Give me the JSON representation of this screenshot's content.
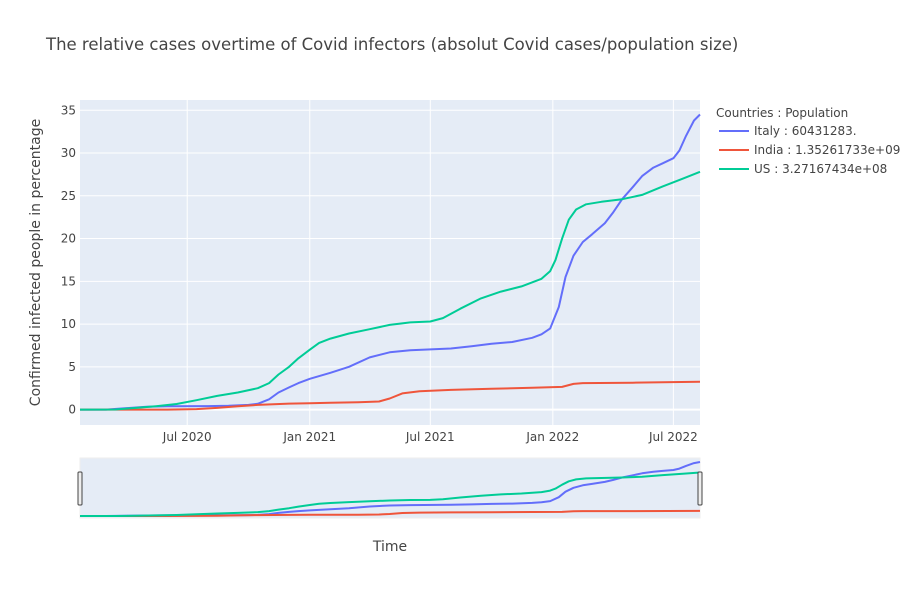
{
  "chart_data": {
    "type": "line",
    "title": "The relative cases overtime of Covid infectors (absolut Covid cases/population size)",
    "xlabel": "Time",
    "ylabel": "Confirmed infected people in percentage",
    "x_range": [
      "2020-01-22",
      "2022-08-10"
    ],
    "ylim": [
      -1.8,
      36.2
    ],
    "y_ticks": [
      0,
      5,
      10,
      15,
      20,
      25,
      30,
      35
    ],
    "x_ticks": [
      {
        "date": "2020-07-01",
        "label": "Jul 2020"
      },
      {
        "date": "2021-01-01",
        "label": "Jan 2021"
      },
      {
        "date": "2021-07-01",
        "label": "Jul 2021"
      },
      {
        "date": "2022-01-01",
        "label": "Jan 2022"
      },
      {
        "date": "2022-07-01",
        "label": "Jul 2022"
      }
    ],
    "grid": true,
    "legend": {
      "title": "Countries : Population",
      "placement": "right"
    },
    "rangeslider": true,
    "colors": {
      "plot_bg": "#E5ECF6",
      "grid": "#ffffff",
      "text": "#444444"
    },
    "series": [
      {
        "name": "Italy : 60431283.",
        "color": "#636EFA",
        "points": [
          [
            "2020-01-22",
            0.0
          ],
          [
            "2020-03-01",
            0.0
          ],
          [
            "2020-04-01",
            0.18
          ],
          [
            "2020-05-01",
            0.34
          ],
          [
            "2020-06-01",
            0.39
          ],
          [
            "2020-08-01",
            0.41
          ],
          [
            "2020-09-01",
            0.45
          ],
          [
            "2020-10-01",
            0.55
          ],
          [
            "2020-10-15",
            0.68
          ],
          [
            "2020-11-01",
            1.2
          ],
          [
            "2020-11-15",
            2.0
          ],
          [
            "2020-12-01",
            2.6
          ],
          [
            "2020-12-15",
            3.1
          ],
          [
            "2021-01-01",
            3.6
          ],
          [
            "2021-02-01",
            4.3
          ],
          [
            "2021-03-01",
            5.0
          ],
          [
            "2021-04-01",
            6.1
          ],
          [
            "2021-05-01",
            6.7
          ],
          [
            "2021-06-01",
            6.95
          ],
          [
            "2021-08-01",
            7.15
          ],
          [
            "2021-09-01",
            7.4
          ],
          [
            "2021-10-01",
            7.7
          ],
          [
            "2021-11-01",
            7.9
          ],
          [
            "2021-12-01",
            8.4
          ],
          [
            "2021-12-15",
            8.8
          ],
          [
            "2021-12-28",
            9.5
          ],
          [
            "2022-01-10",
            12.0
          ],
          [
            "2022-01-20",
            15.5
          ],
          [
            "2022-02-01",
            18.0
          ],
          [
            "2022-02-15",
            19.6
          ],
          [
            "2022-03-01",
            20.5
          ],
          [
            "2022-03-20",
            21.8
          ],
          [
            "2022-04-01",
            23.0
          ],
          [
            "2022-04-15",
            24.6
          ],
          [
            "2022-05-01",
            26.0
          ],
          [
            "2022-05-15",
            27.3
          ],
          [
            "2022-06-01",
            28.3
          ],
          [
            "2022-06-15",
            28.8
          ],
          [
            "2022-07-01",
            29.4
          ],
          [
            "2022-07-10",
            30.3
          ],
          [
            "2022-07-20",
            32.0
          ],
          [
            "2022-08-01",
            33.8
          ],
          [
            "2022-08-10",
            34.5
          ]
        ]
      },
      {
        "name": "India : 1.35261733e+09",
        "color": "#EF553B",
        "points": [
          [
            "2020-01-22",
            0.0
          ],
          [
            "2020-06-01",
            0.0
          ],
          [
            "2020-07-15",
            0.06
          ],
          [
            "2020-08-15",
            0.2
          ],
          [
            "2020-09-15",
            0.4
          ],
          [
            "2020-10-15",
            0.55
          ],
          [
            "2020-12-01",
            0.7
          ],
          [
            "2021-01-01",
            0.75
          ],
          [
            "2021-02-01",
            0.8
          ],
          [
            "2021-03-15",
            0.85
          ],
          [
            "2021-04-15",
            0.95
          ],
          [
            "2021-05-01",
            1.3
          ],
          [
            "2021-05-20",
            1.9
          ],
          [
            "2021-06-15",
            2.15
          ],
          [
            "2021-08-01",
            2.3
          ],
          [
            "2021-10-01",
            2.45
          ],
          [
            "2021-12-01",
            2.55
          ],
          [
            "2022-01-15",
            2.65
          ],
          [
            "2022-02-01",
            3.0
          ],
          [
            "2022-02-15",
            3.1
          ],
          [
            "2022-05-01",
            3.15
          ],
          [
            "2022-08-10",
            3.25
          ]
        ]
      },
      {
        "name": "US : 3.27167434e+08",
        "color": "#00CC96",
        "points": [
          [
            "2020-01-22",
            0.0
          ],
          [
            "2020-03-15",
            0.01
          ],
          [
            "2020-04-15",
            0.2
          ],
          [
            "2020-05-15",
            0.4
          ],
          [
            "2020-06-15",
            0.65
          ],
          [
            "2020-07-15",
            1.1
          ],
          [
            "2020-08-15",
            1.6
          ],
          [
            "2020-09-15",
            2.0
          ],
          [
            "2020-10-15",
            2.5
          ],
          [
            "2020-11-01",
            3.1
          ],
          [
            "2020-11-15",
            4.1
          ],
          [
            "2020-12-01",
            5.0
          ],
          [
            "2020-12-15",
            6.0
          ],
          [
            "2021-01-01",
            7.0
          ],
          [
            "2021-01-15",
            7.8
          ],
          [
            "2021-02-01",
            8.3
          ],
          [
            "2021-03-01",
            8.9
          ],
          [
            "2021-04-01",
            9.4
          ],
          [
            "2021-05-01",
            9.9
          ],
          [
            "2021-06-01",
            10.2
          ],
          [
            "2021-07-01",
            10.3
          ],
          [
            "2021-07-20",
            10.7
          ],
          [
            "2021-08-15",
            11.8
          ],
          [
            "2021-09-15",
            13.0
          ],
          [
            "2021-10-15",
            13.8
          ],
          [
            "2021-11-15",
            14.4
          ],
          [
            "2021-12-15",
            15.3
          ],
          [
            "2021-12-28",
            16.2
          ],
          [
            "2022-01-05",
            17.5
          ],
          [
            "2022-01-15",
            20.0
          ],
          [
            "2022-01-25",
            22.2
          ],
          [
            "2022-02-05",
            23.4
          ],
          [
            "2022-02-20",
            24.0
          ],
          [
            "2022-03-15",
            24.3
          ],
          [
            "2022-04-15",
            24.6
          ],
          [
            "2022-05-15",
            25.1
          ],
          [
            "2022-06-15",
            26.1
          ],
          [
            "2022-07-15",
            27.0
          ],
          [
            "2022-08-10",
            27.8
          ]
        ]
      }
    ]
  }
}
